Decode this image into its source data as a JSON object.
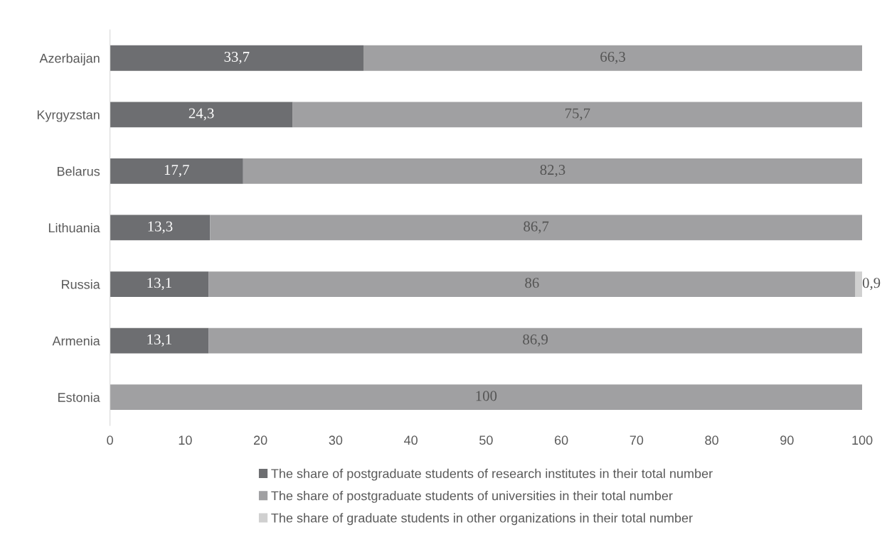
{
  "chart_data": {
    "type": "bar",
    "orientation": "horizontal",
    "stacked": true,
    "categories": [
      "Azerbaijan",
      "Kyrgyzstan",
      "Belarus",
      "Lithuania",
      "Russia",
      "Armenia",
      "Estonia"
    ],
    "series": [
      {
        "name": "The share of postgraduate students of research institutes in their total number",
        "color": "#6d6e71",
        "values": [
          33.7,
          24.3,
          17.7,
          13.3,
          13.1,
          13.1,
          null
        ],
        "value_labels": [
          "33,7",
          "24,3",
          "17,7",
          "13,3",
          "13,1",
          "13,1",
          null
        ]
      },
      {
        "name": "The share of postgraduate students of universities in their total number",
        "color": "#a0a0a2",
        "values": [
          66.3,
          75.7,
          82.3,
          86.7,
          86,
          86.9,
          100
        ],
        "value_labels": [
          "66,3",
          "75,7",
          "82,3",
          "86,7",
          "86",
          "86,9",
          "100"
        ]
      },
      {
        "name": "The share of graduate students in other organizations in their total number",
        "color": "#d0d0d0",
        "values": [
          null,
          null,
          null,
          null,
          0.9,
          null,
          null
        ],
        "value_labels": [
          null,
          null,
          null,
          null,
          "0,9",
          null,
          null
        ]
      }
    ],
    "xlim": [
      0,
      100
    ],
    "xticks": [
      0,
      10,
      20,
      30,
      40,
      50,
      60,
      70,
      80,
      90,
      100
    ],
    "grid": false,
    "legend": "bottom"
  }
}
